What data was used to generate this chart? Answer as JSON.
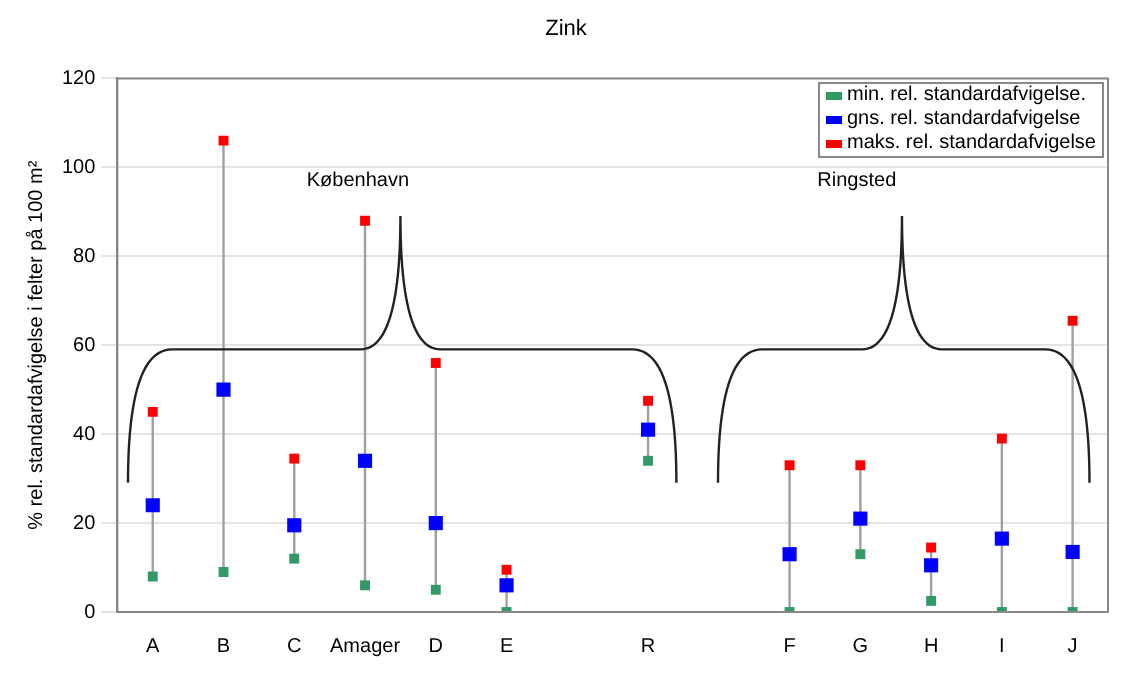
{
  "chart_data": {
    "type": "scatter",
    "title": "Zink",
    "ylabel": "% rel. standardafvigelse i felter på 100 m²",
    "categories": [
      "A",
      "B",
      "C",
      "Amager",
      "D",
      "E",
      null,
      "R",
      null,
      "F",
      "G",
      "H",
      "I",
      "J"
    ],
    "series": [
      {
        "name": "min. rel. standardafvigelse.",
        "color": "#339966",
        "values": [
          8,
          9,
          12,
          6,
          5,
          0,
          null,
          34,
          null,
          0,
          13,
          2.5,
          0,
          0
        ]
      },
      {
        "name": "gns. rel. standardafvigelse",
        "color": "#0000ff",
        "values": [
          24,
          50,
          19.5,
          34,
          20,
          6,
          null,
          41,
          null,
          13,
          21,
          10.5,
          16.5,
          13.5
        ]
      },
      {
        "name": "maks. rel. standardafvigelse",
        "color": "#ff0000",
        "values": [
          45,
          106,
          34.5,
          88,
          56,
          9.5,
          null,
          47.5,
          null,
          33,
          33,
          14.5,
          39,
          65.5
        ]
      }
    ],
    "ylim": [
      0,
      120
    ],
    "yticks": [
      0,
      20,
      40,
      60,
      80,
      100,
      120
    ],
    "grid": "y",
    "legend": "top right",
    "annotations": [
      "København",
      "Ringsted"
    ]
  }
}
